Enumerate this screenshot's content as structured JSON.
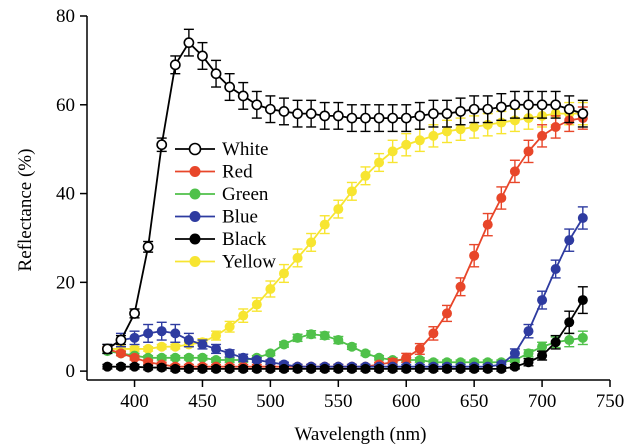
{
  "chart_data": {
    "type": "line",
    "xlabel": "Wavelength (nm)",
    "ylabel": "Reflectance (%)",
    "xlim": [
      365,
      750
    ],
    "ylim": [
      -2,
      80
    ],
    "xticks": [
      400,
      450,
      500,
      550,
      600,
      650,
      700,
      750
    ],
    "yticks": [
      0,
      20,
      40,
      60,
      80
    ],
    "xtick_labels": [
      "400",
      "450",
      "500",
      "550",
      "600",
      "650",
      "700",
      "750"
    ],
    "ytick_labels": [
      "0",
      "20",
      "40",
      "60",
      "80"
    ],
    "legend_position": "left-middle",
    "grid": false,
    "x": [
      380,
      390,
      400,
      410,
      420,
      430,
      440,
      450,
      460,
      470,
      480,
      490,
      500,
      510,
      520,
      530,
      540,
      550,
      560,
      570,
      580,
      590,
      600,
      610,
      620,
      630,
      640,
      650,
      660,
      670,
      680,
      690,
      700,
      710,
      720,
      730
    ],
    "series": [
      {
        "name": "White",
        "color": "#000000",
        "marker": "open",
        "values": [
          5,
          7,
          13,
          28,
          51,
          69,
          74,
          71,
          67,
          64,
          62,
          60,
          59,
          58.5,
          58,
          58,
          57.5,
          57.5,
          57,
          57,
          57,
          57,
          57,
          57.5,
          58,
          58,
          58.5,
          59,
          59,
          59.5,
          60,
          60,
          60,
          60,
          59,
          58
        ],
        "errors": [
          1,
          1,
          1,
          1.2,
          1.5,
          2,
          3,
          3,
          3,
          3,
          3,
          3,
          3,
          3,
          3,
          3,
          3,
          3,
          3,
          3,
          3,
          3,
          3,
          3,
          3,
          3,
          3,
          3,
          3,
          3,
          3,
          3,
          3,
          3,
          3,
          3
        ]
      },
      {
        "name": "Red",
        "color": "#e8462a",
        "marker": "filled",
        "values": [
          5,
          4,
          3,
          2,
          1.5,
          1,
          1,
          1,
          1,
          1,
          1,
          1,
          1,
          1,
          1,
          1,
          1,
          1,
          1,
          1,
          1.5,
          2,
          3,
          5,
          8.5,
          13,
          19,
          26,
          33,
          39,
          45,
          49.5,
          53,
          55,
          56.5,
          57
        ],
        "errors": [
          0.5,
          0.5,
          0.5,
          0.5,
          0.5,
          0.5,
          0.5,
          0.5,
          0.5,
          0.5,
          0.5,
          0.5,
          0.5,
          0.5,
          0.5,
          0.5,
          0.5,
          0.5,
          0.5,
          0.5,
          0.5,
          0.8,
          1,
          1.2,
          1.5,
          1.8,
          2,
          2.5,
          2.5,
          2.5,
          2.5,
          2.5,
          2.5,
          2.5,
          2.5,
          2.5
        ]
      },
      {
        "name": "Green",
        "color": "#4fc14a",
        "marker": "filled",
        "values": [
          4.5,
          4,
          3.5,
          3,
          3,
          3,
          3,
          3,
          2.5,
          2.5,
          2.5,
          3,
          4,
          6,
          7.5,
          8.3,
          8,
          7,
          5.5,
          4,
          3,
          2.5,
          2.5,
          2.5,
          2,
          2,
          2,
          2,
          2,
          2,
          2.5,
          4,
          5.5,
          6.5,
          7,
          7.5
        ],
        "errors": [
          0.5,
          0.5,
          0.5,
          0.5,
          0.5,
          0.5,
          0.5,
          0.5,
          0.5,
          0.5,
          0.5,
          0.5,
          0.5,
          0.6,
          0.8,
          0.8,
          0.8,
          0.8,
          0.6,
          0.5,
          0.5,
          0.5,
          0.5,
          0.5,
          0.5,
          0.5,
          0.5,
          0.5,
          0.5,
          0.5,
          0.5,
          0.8,
          1,
          1.2,
          1.5,
          1.5
        ]
      },
      {
        "name": "Blue",
        "color": "#2e3ba0",
        "marker": "filled",
        "values": [
          5,
          7,
          7.5,
          8.5,
          9,
          8.5,
          7,
          6,
          5,
          4,
          3,
          2.5,
          2,
          1.5,
          1,
          1,
          1,
          1,
          1,
          1,
          1,
          1,
          1,
          1,
          1,
          1,
          1,
          1,
          1,
          1.5,
          4,
          9,
          16,
          23,
          29.5,
          34.5
        ],
        "errors": [
          1,
          1.5,
          1.5,
          2,
          2,
          2,
          1.5,
          1,
          1,
          0.8,
          0.8,
          0.5,
          0.5,
          0.5,
          0.5,
          0.5,
          0.5,
          0.5,
          0.5,
          0.5,
          0.5,
          0.5,
          0.5,
          0.5,
          0.5,
          0.5,
          0.5,
          0.5,
          0.5,
          0.5,
          1,
          1.5,
          2,
          2,
          2.5,
          2.5
        ]
      },
      {
        "name": "Black",
        "color": "#000000",
        "marker": "filled",
        "values": [
          1,
          1,
          1,
          0.8,
          0.8,
          0.5,
          0.5,
          0.5,
          0.5,
          0.5,
          0.5,
          0.5,
          0.5,
          0.5,
          0.5,
          0.5,
          0.5,
          0.5,
          0.5,
          0.5,
          0.5,
          0.5,
          0.5,
          0.5,
          0.5,
          0.5,
          0.5,
          0.5,
          0.5,
          0.5,
          1,
          2,
          3.5,
          6.5,
          11,
          16
        ],
        "errors": [
          0.5,
          0.5,
          0.5,
          0.5,
          0.5,
          0.5,
          0.5,
          0.5,
          0.5,
          0.5,
          0.5,
          0.5,
          0.5,
          0.5,
          0.5,
          0.5,
          0.5,
          0.5,
          0.5,
          0.5,
          0.5,
          0.5,
          0.5,
          0.5,
          0.5,
          0.5,
          0.5,
          0.5,
          0.5,
          0.5,
          0.5,
          0.8,
          1,
          1.5,
          2.5,
          3
        ]
      },
      {
        "name": "Yellow",
        "color": "#f7e531",
        "marker": "filled",
        "values": [
          5,
          5,
          5,
          5,
          5.5,
          5.5,
          6,
          6.5,
          8,
          10,
          12.5,
          15,
          18.5,
          22,
          25.5,
          29,
          33,
          36.5,
          40.5,
          44,
          47,
          49.5,
          51,
          52,
          53,
          54,
          54.5,
          55,
          55.5,
          56,
          56.5,
          57,
          57.5,
          58,
          58,
          58
        ],
        "errors": [
          0.5,
          0.5,
          0.5,
          0.5,
          0.5,
          0.5,
          0.5,
          0.8,
          1,
          1.2,
          1.5,
          1.5,
          1.8,
          2,
          2,
          2,
          2,
          2,
          2,
          2,
          2,
          2.5,
          2.5,
          2.5,
          2.5,
          2.5,
          2.5,
          2.5,
          2.5,
          2.5,
          2.5,
          2.5,
          2.5,
          2.5,
          2.5,
          2.5
        ]
      }
    ]
  }
}
